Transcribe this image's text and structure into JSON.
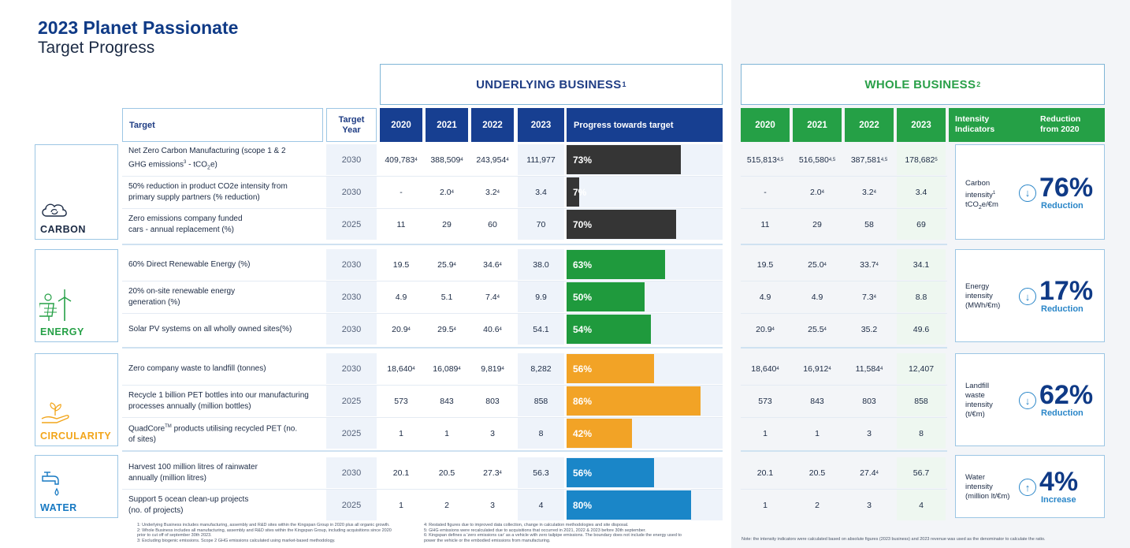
{
  "title": "2023 Planet Passionate",
  "subtitle": "Target Progress",
  "underlying_header": "UNDERLYING BUSINESS",
  "underlying_sup": "1",
  "whole_header": "WHOLE BUSINESS",
  "whole_sup": "2",
  "col_target": "Target",
  "col_target_year_1": "Target",
  "col_target_year_2": "Year",
  "years": [
    "2020",
    "2021",
    "2022",
    "2023"
  ],
  "col_progress": "Progress towards target",
  "col_intensity_1": "Intensity",
  "col_intensity_2": "Indicators",
  "col_reduction_1": "Reduction",
  "col_reduction_2": "from 2020",
  "categories": [
    {
      "label": "CARBON",
      "color": "#1b2a44",
      "icon": "cloud-recycle-icon"
    },
    {
      "label": "ENERGY",
      "color": "#25a046",
      "icon": "solar-wind-icon"
    },
    {
      "label": "CIRCULARITY",
      "color": "#f2a51a",
      "icon": "hand-sprout-icon"
    },
    {
      "label": "WATER",
      "color": "#1678c2",
      "icon": "water-tap-icon"
    }
  ],
  "rows": [
    {
      "target_1": "Net Zero Carbon Manufacturing (scope 1 & 2",
      "target_2": "GHG emissions",
      "target_sup": "3",
      "target_3": " - tCO",
      "target_sub": "2",
      "target_4": "e)",
      "year": "2030",
      "ub": [
        "409,783",
        "388,509",
        "243,954",
        "111,977"
      ],
      "ub_sup": [
        "4",
        "4",
        "4",
        ""
      ],
      "progress": "73%",
      "progress_value": 73,
      "bar_color": "#353535",
      "wb": [
        "515,813",
        "516,580",
        "387,581",
        "178,682"
      ],
      "wb_sup": [
        "4,5",
        "4,5",
        "4,5",
        "5"
      ]
    },
    {
      "target_1": "50% reduction in product CO2e intensity from",
      "target_2": "primary supply partners (% reduction)",
      "year": "2030",
      "ub": [
        "-",
        "2.0",
        "3.2",
        "3.4"
      ],
      "ub_sup": [
        "",
        "4",
        "4",
        ""
      ],
      "progress": "7%",
      "progress_value": 7,
      "bar_color": "#353535",
      "wb": [
        "-",
        "2.0",
        "3.2",
        "3.4"
      ],
      "wb_sup": [
        "",
        "4",
        "4",
        ""
      ]
    },
    {
      "target_1": "Zero emissions company funded",
      "target_2": "cars - annual replacement (%)",
      "year": "2025",
      "ub": [
        "11",
        "29",
        "60",
        "70"
      ],
      "ub_sup": [
        "",
        "",
        "",
        ""
      ],
      "progress": "70%",
      "progress_value": 70,
      "bar_color": "#353535",
      "wb": [
        "11",
        "29",
        "58",
        "69"
      ],
      "wb_sup": [
        "",
        "",
        "",
        ""
      ]
    },
    {
      "target_1": "60% Direct Renewable Energy (%)",
      "target_2": "",
      "year": "2030",
      "ub": [
        "19.5",
        "25.9",
        "34.6",
        "38.0"
      ],
      "ub_sup": [
        "",
        "4",
        "4",
        ""
      ],
      "progress": "63%",
      "progress_value": 63,
      "bar_color": "#1f9a3d",
      "wb": [
        "19.5",
        "25.0",
        "33.7",
        "34.1"
      ],
      "wb_sup": [
        "",
        "4",
        "4",
        ""
      ]
    },
    {
      "target_1": "20% on-site renewable energy",
      "target_2": "generation (%)",
      "year": "2030",
      "ub": [
        "4.9",
        "5.1",
        "7.4",
        "9.9"
      ],
      "ub_sup": [
        "",
        "",
        "4",
        ""
      ],
      "progress": "50%",
      "progress_value": 50,
      "bar_color": "#1f9a3d",
      "wb": [
        "4.9",
        "4.9",
        "7.3",
        "8.8"
      ],
      "wb_sup": [
        "",
        "",
        "4",
        ""
      ]
    },
    {
      "target_1": "Solar PV systems on all wholly owned sites(%)",
      "target_2": "",
      "year": "2030",
      "ub": [
        "20.9",
        "29.5",
        "40.6",
        "54.1"
      ],
      "ub_sup": [
        "4",
        "4",
        "4",
        ""
      ],
      "progress": "54%",
      "progress_value": 54,
      "bar_color": "#1f9a3d",
      "wb": [
        "20.9",
        "25.5",
        "35.2",
        "49.6"
      ],
      "wb_sup": [
        "4",
        "4",
        "",
        ""
      ]
    },
    {
      "target_1": "Zero company waste to landfill (tonnes)",
      "target_2": "",
      "year": "2030",
      "ub": [
        "18,640",
        "16,089",
        "9,819",
        "8,282"
      ],
      "ub_sup": [
        "4",
        "4",
        "4",
        ""
      ],
      "progress": "56%",
      "progress_value": 56,
      "bar_color": "#f2a326",
      "wb": [
        "18,640",
        "16,912",
        "11,584",
        "12,407"
      ],
      "wb_sup": [
        "4",
        "4",
        "4",
        ""
      ]
    },
    {
      "target_1": "Recycle 1 billion PET bottles into our manufacturing",
      "target_2": "processes annually (million bottles)",
      "year": "2025",
      "ub": [
        "573",
        "843",
        "803",
        "858"
      ],
      "ub_sup": [
        "",
        "",
        "",
        ""
      ],
      "progress": "86%",
      "progress_value": 86,
      "bar_color": "#f2a326",
      "wb": [
        "573",
        "843",
        "803",
        "858"
      ],
      "wb_sup": [
        "",
        "",
        "",
        ""
      ]
    },
    {
      "target_1": "QuadCore",
      "target_tm": "TM",
      "target_1b": " products utilising recycled PET (no.",
      "target_2": "of sites)",
      "year": "2025",
      "ub": [
        "1",
        "1",
        "3",
        "8"
      ],
      "ub_sup": [
        "",
        "",
        "",
        ""
      ],
      "progress": "42%",
      "progress_value": 42,
      "bar_color": "#f2a326",
      "wb": [
        "1",
        "1",
        "3",
        "8"
      ],
      "wb_sup": [
        "",
        "",
        "",
        ""
      ]
    },
    {
      "target_1": "Harvest 100 million litres of rainwater",
      "target_2": "annually (million litres)",
      "year": "2030",
      "ub": [
        "20.1",
        "20.5",
        "27.3",
        "56.3"
      ],
      "ub_sup": [
        "",
        "",
        "4",
        ""
      ],
      "progress": "56%",
      "progress_value": 56,
      "bar_color": "#1a86c8",
      "wb": [
        "20.1",
        "20.5",
        "27.4",
        "56.7"
      ],
      "wb_sup": [
        "",
        "",
        "4",
        ""
      ]
    },
    {
      "target_1": "Support 5 ocean clean-up projects",
      "target_2": "(no. of projects)",
      "year": "2025",
      "ub": [
        "1",
        "2",
        "3",
        "4"
      ],
      "ub_sup": [
        "",
        "",
        "",
        ""
      ],
      "progress": "80%",
      "progress_value": 80,
      "bar_color": "#1a86c8",
      "wb": [
        "1",
        "2",
        "3",
        "4"
      ],
      "wb_sup": [
        "",
        "",
        "",
        ""
      ]
    }
  ],
  "intensity": [
    {
      "label_1": "Carbon",
      "label_2": "intensity",
      "label_sup": "1",
      "label_3": "tCO",
      "label_sub": "2",
      "label_4": "e/€m",
      "value": "76%",
      "direction": "Reduction",
      "arrow": "↓"
    },
    {
      "label_1": "Energy",
      "label_2": "intensity",
      "label_3": "(MWh/€m)",
      "value": "17%",
      "direction": "Reduction",
      "arrow": "↓"
    },
    {
      "label_1": "Landfill",
      "label_2": "waste",
      "label_3": "intensity",
      "label_4": "(t/€m)",
      "value": "62%",
      "direction": "Reduction",
      "arrow": "↓"
    },
    {
      "label_1": "Water",
      "label_2": "intensity",
      "label_3": "(million lt/€m)",
      "value": "4%",
      "direction": "Increase",
      "arrow": "↑"
    }
  ],
  "footnotes_left": [
    "1: Underlying Business includes manufacturing, assembly and R&D sites within the Kingspan Group in 2020 plus all organic growth.",
    "2: Whole Business includes all manufacturing, assembly and R&D sites within the Kingspan Group, including acquisitions since 2020",
    "prior to cut off of september 30th 2023.",
    "3: Excluding biogenic emissions. Scope 2 GHG emissions calculated using market-based methodology."
  ],
  "footnotes_mid": [
    "4: Restated figures due to improved data collection, change in calculation methodologies and site disposal.",
    "5: GHG emissions were recalculated due to acquisitions that occurred in 2021, 2022 & 2023 before 30th september.",
    "6: Kingspan defines a 'zero emissions car' as a vehicle with zero tailpipe emissions. The boundary does not include the energy used to",
    "power the vehicle or the embodied emissions from manufacturing."
  ],
  "footnote_right": "Note: the intensity indicators were calculated based on absolute figures (2023 business) and 2023 revenue was used as the denominator to calculate the ratio."
}
